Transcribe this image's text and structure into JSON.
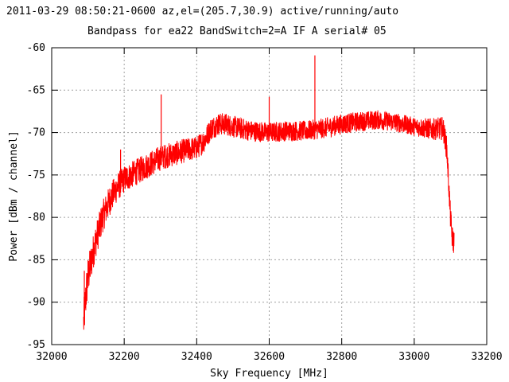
{
  "chart_data": {
    "type": "line",
    "title_line1": "2011-03-29 08:50:21-0600  az,el=(205.7,30.9) active/running/auto",
    "title_line2": "Bandpass for ea22  BandSwitch=2=A  IF A  serial# 05",
    "xlabel": "Sky Frequency [MHz]",
    "ylabel": "Power [dBm / channel]",
    "xlim": [
      32000,
      33200
    ],
    "ylim": [
      -95,
      -60
    ],
    "x_ticks": [
      32000,
      32200,
      32400,
      32600,
      32800,
      33000,
      33200
    ],
    "y_ticks": [
      -95,
      -90,
      -85,
      -80,
      -75,
      -70,
      -65,
      -60
    ],
    "grid": true,
    "series": [
      {
        "color": "#ff0000",
        "x_start": 32088,
        "x_end": 33110,
        "envelope": [
          [
            32088,
            -92.5
          ],
          [
            32092,
            -90.5
          ],
          [
            32096,
            -88.5
          ],
          [
            32100,
            -87.0
          ],
          [
            32110,
            -85.0
          ],
          [
            32120,
            -83.0
          ],
          [
            32130,
            -81.5
          ],
          [
            32140,
            -80.0
          ],
          [
            32150,
            -79.0
          ],
          [
            32160,
            -78.0
          ],
          [
            32170,
            -77.2
          ],
          [
            32180,
            -76.5
          ],
          [
            32200,
            -75.5
          ],
          [
            32220,
            -75.0
          ],
          [
            32240,
            -74.5
          ],
          [
            32260,
            -74.0
          ],
          [
            32280,
            -73.5
          ],
          [
            32300,
            -73.0
          ],
          [
            32320,
            -72.7
          ],
          [
            32340,
            -72.5
          ],
          [
            32360,
            -72.2
          ],
          [
            32380,
            -72.0
          ],
          [
            32400,
            -71.8
          ],
          [
            32420,
            -71.0
          ],
          [
            32440,
            -69.5
          ],
          [
            32460,
            -69.0
          ],
          [
            32480,
            -69.0
          ],
          [
            32500,
            -69.3
          ],
          [
            32550,
            -69.8
          ],
          [
            32600,
            -70.0
          ],
          [
            32650,
            -69.8
          ],
          [
            32700,
            -69.8
          ],
          [
            32750,
            -69.5
          ],
          [
            32800,
            -69.0
          ],
          [
            32850,
            -68.7
          ],
          [
            32900,
            -68.5
          ],
          [
            32950,
            -68.8
          ],
          [
            33000,
            -69.3
          ],
          [
            33050,
            -69.6
          ],
          [
            33080,
            -69.5
          ],
          [
            33090,
            -72.0
          ],
          [
            33095,
            -76.0
          ],
          [
            33100,
            -80.0
          ],
          [
            33105,
            -82.5
          ],
          [
            33110,
            -83.0
          ]
        ],
        "noise_dB": [
          [
            32088,
            2.5
          ],
          [
            32120,
            2.0
          ],
          [
            32200,
            1.6
          ],
          [
            32400,
            1.4
          ],
          [
            32600,
            1.2
          ],
          [
            32800,
            1.2
          ],
          [
            33000,
            1.1
          ],
          [
            33110,
            1.5
          ]
        ],
        "spikes": [
          {
            "x": 32090,
            "y": -86.3
          },
          {
            "x": 32190,
            "y": -72.0
          },
          {
            "x": 32302,
            "y": -65.5
          },
          {
            "x": 32600,
            "y": -65.8
          },
          {
            "x": 32726,
            "y": -60.9
          }
        ]
      }
    ]
  }
}
